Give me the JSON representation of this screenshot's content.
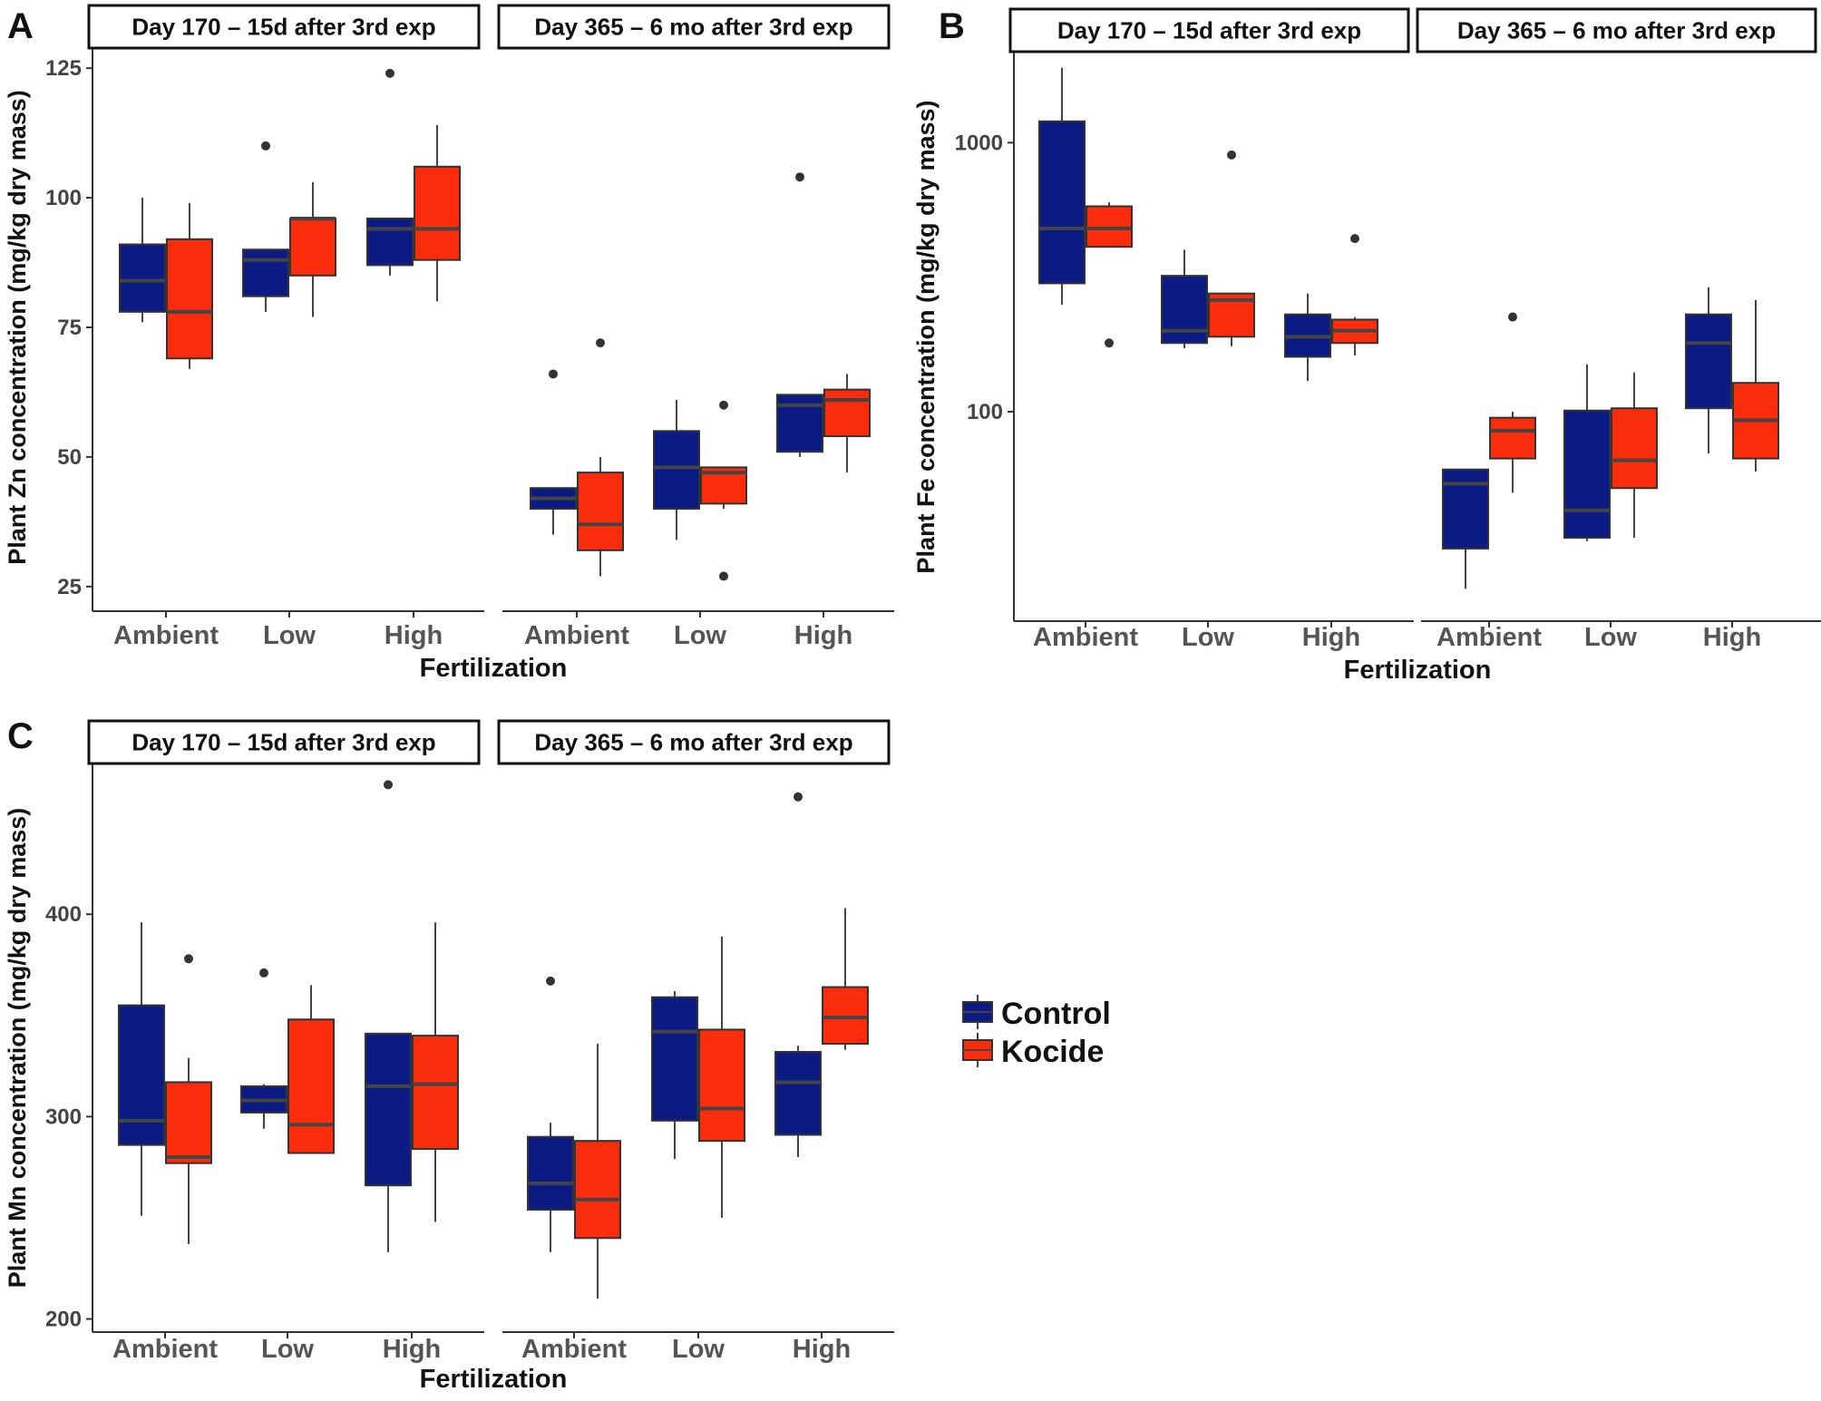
{
  "legend": {
    "items": [
      {
        "label": "Control",
        "color": "#0c1a84"
      },
      {
        "label": "Kocide",
        "color": "#fb2c0b"
      }
    ]
  },
  "colors": {
    "Control": "#0c1a84",
    "Kocide": "#fb2c0b",
    "median": "#444444",
    "axis": "#333333"
  },
  "chart_data": [
    {
      "type": "box",
      "panel_label": "A",
      "ylabel": "Plant Zn concentration (mg/kg dry mass)",
      "xlabel": "Fertilization",
      "yscale": "linear",
      "ylim": [
        22,
        128
      ],
      "yticks": [
        25,
        50,
        75,
        100,
        125
      ],
      "ytick_labels": [
        "25",
        "50",
        "75",
        "100",
        "125"
      ],
      "facets": [
        {
          "strip": "Day 170 – 15d after 3rd exp",
          "categories": [
            "Ambient",
            "Low",
            "High"
          ],
          "series": [
            {
              "name": "Control",
              "boxes": [
                {
                  "min": 76,
                  "q1": 78,
                  "median": 84,
                  "q3": 91,
                  "max": 100,
                  "outliers": []
                },
                {
                  "min": 78,
                  "q1": 81,
                  "median": 88,
                  "q3": 90,
                  "max": 90,
                  "outliers": [
                    110
                  ]
                },
                {
                  "min": 85,
                  "q1": 87,
                  "median": 94,
                  "q3": 96,
                  "max": 96,
                  "outliers": [
                    124
                  ]
                }
              ]
            },
            {
              "name": "Kocide",
              "boxes": [
                {
                  "min": 67,
                  "q1": 69,
                  "median": 78,
                  "q3": 92,
                  "max": 99,
                  "outliers": []
                },
                {
                  "min": 77,
                  "q1": 85,
                  "median": 96,
                  "q3": 96,
                  "max": 103,
                  "outliers": []
                },
                {
                  "min": 80,
                  "q1": 88,
                  "median": 94,
                  "q3": 106,
                  "max": 114,
                  "outliers": []
                }
              ]
            }
          ]
        },
        {
          "strip": "Day 365 – 6 mo after 3rd exp",
          "categories": [
            "Ambient",
            "Low",
            "High"
          ],
          "series": [
            {
              "name": "Control",
              "boxes": [
                {
                  "min": 35,
                  "q1": 40,
                  "median": 42,
                  "q3": 44,
                  "max": 44,
                  "outliers": [
                    66
                  ]
                },
                {
                  "min": 34,
                  "q1": 40,
                  "median": 48,
                  "q3": 55,
                  "max": 61,
                  "outliers": []
                },
                {
                  "min": 50,
                  "q1": 51,
                  "median": 60,
                  "q3": 62,
                  "max": 62,
                  "outliers": [
                    104
                  ]
                }
              ]
            },
            {
              "name": "Kocide",
              "boxes": [
                {
                  "min": 27,
                  "q1": 32,
                  "median": 37,
                  "q3": 47,
                  "max": 50,
                  "outliers": [
                    72
                  ]
                },
                {
                  "min": 40,
                  "q1": 41,
                  "median": 47,
                  "q3": 48,
                  "max": 48,
                  "outliers": [
                    60,
                    27
                  ]
                },
                {
                  "min": 47,
                  "q1": 54,
                  "median": 61,
                  "q3": 63,
                  "max": 66,
                  "outliers": []
                }
              ]
            }
          ]
        }
      ]
    },
    {
      "type": "box",
      "panel_label": "B",
      "ylabel": "Plant Fe concentration (mg/kg dry mass)",
      "xlabel": "Fertilization",
      "yscale": "log10",
      "ylim": [
        18,
        2000
      ],
      "yticks": [
        100,
        1000
      ],
      "ytick_labels": [
        "100",
        "1000"
      ],
      "facets": [
        {
          "strip": "Day 170 – 15d after 3rd exp",
          "categories": [
            "Ambient",
            "Low",
            "High"
          ],
          "series": [
            {
              "name": "Control",
              "boxes": [
                {
                  "min": 250,
                  "q1": 300,
                  "median": 480,
                  "q3": 1200,
                  "max": 1900,
                  "outliers": []
                },
                {
                  "min": 172,
                  "q1": 180,
                  "median": 200,
                  "q3": 320,
                  "max": 400,
                  "outliers": []
                },
                {
                  "min": 130,
                  "q1": 160,
                  "median": 190,
                  "q3": 230,
                  "max": 275,
                  "outliers": []
                }
              ]
            },
            {
              "name": "Kocide",
              "boxes": [
                {
                  "min": 410,
                  "q1": 410,
                  "median": 480,
                  "q3": 580,
                  "max": 600,
                  "outliers": [
                    180
                  ]
                },
                {
                  "min": 175,
                  "q1": 190,
                  "median": 260,
                  "q3": 275,
                  "max": 275,
                  "outliers": [
                    900
                  ]
                },
                {
                  "min": 162,
                  "q1": 180,
                  "median": 200,
                  "q3": 220,
                  "max": 225,
                  "outliers": [
                    440
                  ]
                }
              ]
            }
          ]
        },
        {
          "strip": "Day 365 – 6 mo after 3rd exp",
          "categories": [
            "Ambient",
            "Low",
            "High"
          ],
          "series": [
            {
              "name": "Control",
              "boxes": [
                {
                  "min": 22,
                  "q1": 31,
                  "median": 54,
                  "q3": 61,
                  "max": 61,
                  "outliers": []
                },
                {
                  "min": 33,
                  "q1": 34,
                  "median": 43,
                  "q3": 101,
                  "max": 150,
                  "outliers": []
                },
                {
                  "min": 70,
                  "q1": 103,
                  "median": 180,
                  "q3": 230,
                  "max": 290,
                  "outliers": []
                }
              ]
            },
            {
              "name": "Kocide",
              "boxes": [
                {
                  "min": 50,
                  "q1": 67,
                  "median": 85,
                  "q3": 95,
                  "max": 100,
                  "outliers": [
                    225
                  ]
                },
                {
                  "min": 34,
                  "q1": 52,
                  "median": 66,
                  "q3": 103,
                  "max": 140,
                  "outliers": []
                },
                {
                  "min": 60,
                  "q1": 67,
                  "median": 93,
                  "q3": 128,
                  "max": 260,
                  "outliers": []
                }
              ]
            }
          ]
        }
      ]
    },
    {
      "type": "box",
      "panel_label": "C",
      "ylabel": "Plant Mn concentration (mg/kg dry mass)",
      "xlabel": "Fertilization",
      "yscale": "linear",
      "ylim": [
        198,
        470
      ],
      "yticks": [
        200,
        300,
        400
      ],
      "ytick_labels": [
        "200",
        "300",
        "400"
      ],
      "facets": [
        {
          "strip": "Day 170 – 15d after 3rd exp",
          "categories": [
            "Ambient",
            "Low",
            "High"
          ],
          "series": [
            {
              "name": "Control",
              "boxes": [
                {
                  "min": 251,
                  "q1": 286,
                  "median": 298,
                  "q3": 355,
                  "max": 396,
                  "outliers": []
                },
                {
                  "min": 294,
                  "q1": 302,
                  "median": 308,
                  "q3": 315,
                  "max": 316,
                  "outliers": [
                    371
                  ]
                },
                {
                  "min": 233,
                  "q1": 266,
                  "median": 315,
                  "q3": 341,
                  "max": 341,
                  "outliers": [
                    464
                  ]
                }
              ]
            },
            {
              "name": "Kocide",
              "boxes": [
                {
                  "min": 237,
                  "q1": 277,
                  "median": 280,
                  "q3": 317,
                  "max": 329,
                  "outliers": [
                    378
                  ]
                },
                {
                  "min": 282,
                  "q1": 282,
                  "median": 296,
                  "q3": 348,
                  "max": 365,
                  "outliers": []
                },
                {
                  "min": 248,
                  "q1": 284,
                  "median": 316,
                  "q3": 340,
                  "max": 396,
                  "outliers": []
                }
              ]
            }
          ]
        },
        {
          "strip": "Day 365 – 6 mo after 3rd exp",
          "categories": [
            "Ambient",
            "Low",
            "High"
          ],
          "series": [
            {
              "name": "Control",
              "boxes": [
                {
                  "min": 233,
                  "q1": 254,
                  "median": 267,
                  "q3": 290,
                  "max": 297,
                  "outliers": [
                    367
                  ]
                },
                {
                  "min": 279,
                  "q1": 298,
                  "median": 342,
                  "q3": 359,
                  "max": 362,
                  "outliers": []
                },
                {
                  "min": 280,
                  "q1": 291,
                  "median": 317,
                  "q3": 332,
                  "max": 335,
                  "outliers": [
                    458
                  ]
                }
              ]
            },
            {
              "name": "Kocide",
              "boxes": [
                {
                  "min": 210,
                  "q1": 240,
                  "median": 259,
                  "q3": 288,
                  "max": 336,
                  "outliers": []
                },
                {
                  "min": 250,
                  "q1": 288,
                  "median": 304,
                  "q3": 343,
                  "max": 389,
                  "outliers": []
                },
                {
                  "min": 333,
                  "q1": 336,
                  "median": 349,
                  "q3": 364,
                  "max": 403,
                  "outliers": []
                }
              ]
            }
          ]
        }
      ]
    }
  ]
}
